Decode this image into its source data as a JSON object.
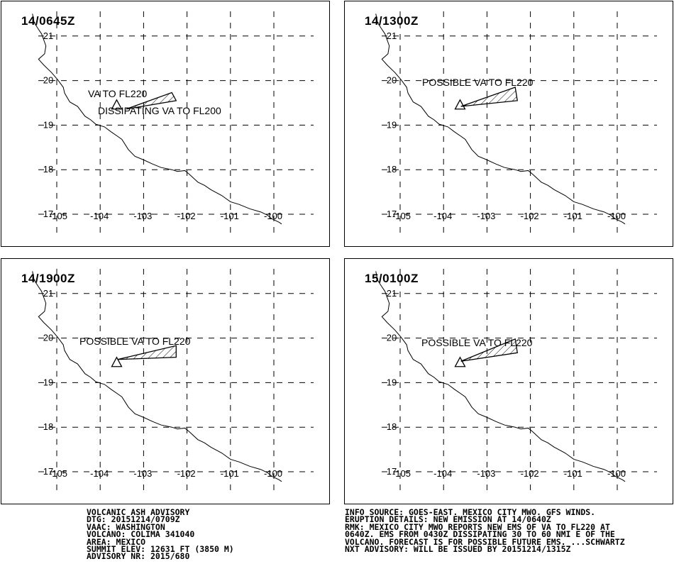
{
  "panels": [
    {
      "time": "14/0645Z",
      "labels": [
        "VA TO FL220",
        "DISSIPATING VA TO FL200"
      ],
      "polygon": [
        [
          -103.4,
          19.36
        ],
        [
          -102.35,
          19.73
        ],
        [
          -102.25,
          19.55
        ],
        [
          -103.4,
          19.36
        ]
      ]
    },
    {
      "time": "14/1300Z",
      "labels": [
        "POSSIBLE VA TO FL220"
      ],
      "polygon": [
        [
          -103.6,
          19.42
        ],
        [
          -102.35,
          19.85
        ],
        [
          -102.3,
          19.55
        ],
        [
          -103.6,
          19.42
        ]
      ]
    },
    {
      "time": "14/1900Z",
      "labels": [
        "POSSIBLE VA TO FL220"
      ],
      "polygon": [
        [
          -103.6,
          19.52
        ],
        [
          -102.25,
          19.83
        ],
        [
          -102.25,
          19.57
        ],
        [
          -103.6,
          19.52
        ]
      ]
    },
    {
      "time": "15/0100Z",
      "labels": [
        "POSSIBLE VA TO FL220"
      ],
      "polygon": [
        [
          -103.6,
          19.48
        ],
        [
          -102.35,
          19.98
        ],
        [
          -102.3,
          19.67
        ],
        [
          -103.6,
          19.48
        ]
      ]
    }
  ],
  "map": {
    "lon_ticks": [
      "-105",
      "-104",
      "-103",
      "-102",
      "-101",
      "-100"
    ],
    "lat_ticks": [
      "17",
      "18",
      "19",
      "20",
      "21"
    ],
    "volcano_marker": "triangle-icon"
  },
  "footer": {
    "left": [
      "VOLCANIC ASH ADVISORY",
      "DTG: 20151214/0709Z",
      "VAAC: WASHINGTON",
      "VOLCANO: COLIMA 341040",
      "AREA: MEXICO",
      "SUMMIT ELEV: 12631 FT (3850 M)",
      "ADVISORY NR: 2015/680"
    ],
    "right": [
      "INFO SOURCE: GOES-EAST. MEXICO CITY MWO. GFS WINDS.",
      "ERUPTION DETAILS: NEW EMISSION AT 14/0640Z",
      "RMK: MEXICO CITY MWO REPORTS NEW EMS OF VA TO FL220 AT",
      "0640Z. EMS FROM 0430Z DISSIPATING 30 TO 60 NMI E OF THE",
      "VOLCANO. FORECAST IS FOR POSSIBLE FUTURE EMS. ...SCHWARTZ",
      "NXT ADVISORY: WILL BE ISSUED BY 20151214/1315Z"
    ]
  }
}
